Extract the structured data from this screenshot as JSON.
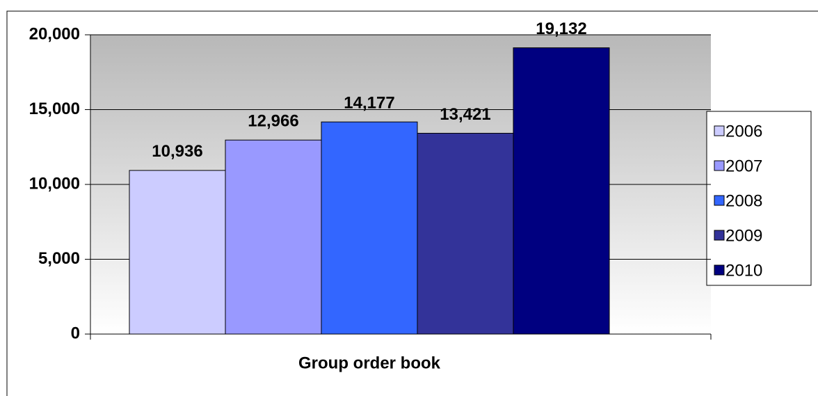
{
  "chart_data": {
    "type": "bar",
    "categories": [
      "Group order book"
    ],
    "series": [
      {
        "name": "2006",
        "color": "#ccccff",
        "values": [
          10936
        ],
        "value_labels": [
          "10,936"
        ]
      },
      {
        "name": "2007",
        "color": "#9999ff",
        "values": [
          12966
        ],
        "value_labels": [
          "12,966"
        ]
      },
      {
        "name": "2008",
        "color": "#3366ff",
        "values": [
          14177
        ],
        "value_labels": [
          "14,177"
        ]
      },
      {
        "name": "2009",
        "color": "#333399",
        "values": [
          13421
        ],
        "value_labels": [
          "13,421"
        ]
      },
      {
        "name": "2010",
        "color": "#000080",
        "values": [
          19132
        ],
        "value_labels": [
          "19,132"
        ]
      }
    ],
    "ylim": [
      0,
      20000
    ],
    "yticks": [
      0,
      {
        "value": 5000,
        "label": "5,000"
      },
      {
        "value": 10000,
        "label": "10,000"
      },
      {
        "value": 15000,
        "label": "15,000"
      },
      {
        "value": 20000,
        "label": "20,000"
      }
    ],
    "grid": true,
    "legend": "right"
  }
}
